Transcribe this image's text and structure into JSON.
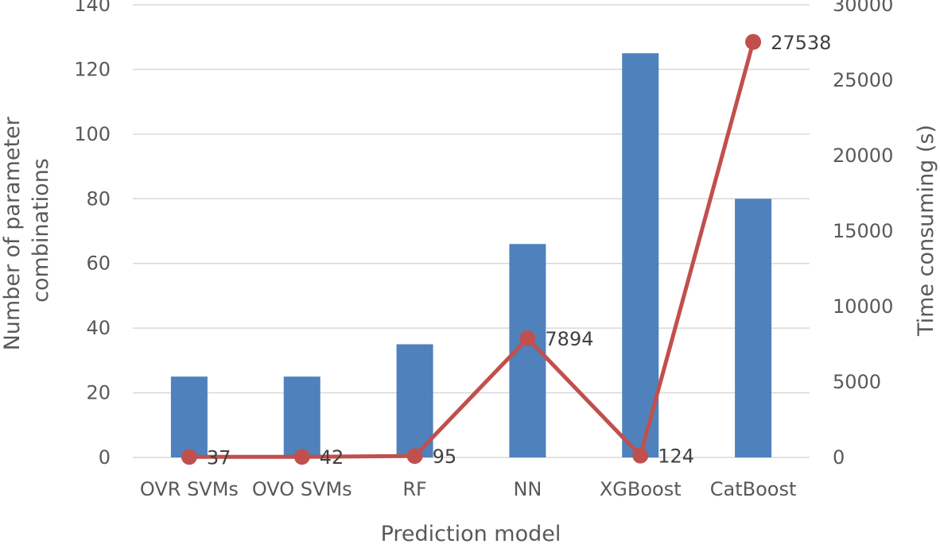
{
  "chart_data": {
    "type": "bar",
    "categories": [
      "OVR SVMs",
      "OVO SVMs",
      "RF",
      "NN",
      "XGBoost",
      "CatBoost"
    ],
    "series": [
      {
        "axis": "left",
        "kind": "bar",
        "values": [
          25,
          25,
          35,
          66,
          125,
          80
        ],
        "color": "#4f81bd"
      },
      {
        "axis": "right",
        "kind": "line",
        "values": [
          37,
          42,
          95,
          7894,
          124,
          27538
        ],
        "color": "#c0504d"
      }
    ],
    "data_labels": [
      "37",
      "42",
      "95",
      "7894",
      "124",
      "27538"
    ],
    "xlabel": "Prediction model",
    "ylabel": "Number of parameter combinations",
    "ylabel_lines": [
      "Number of parameter",
      "combinations"
    ],
    "y2label": "Time consuming (s)",
    "ylim": [
      0,
      140
    ],
    "y2lim": [
      0,
      30000
    ],
    "yticks": [
      "0",
      "20",
      "40",
      "60",
      "80",
      "100",
      "120",
      "140"
    ],
    "y2ticks": [
      "0",
      "5000",
      "10000",
      "15000",
      "20000",
      "25000",
      "30000"
    ],
    "grid": true
  }
}
